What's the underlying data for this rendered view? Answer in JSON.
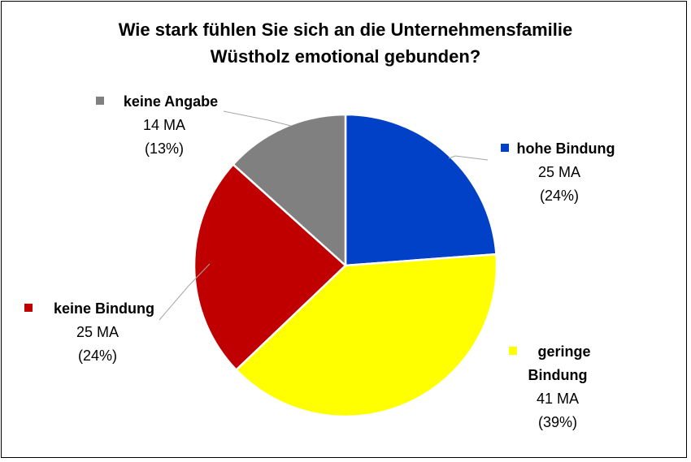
{
  "chart_data": {
    "type": "pie",
    "title_lines": [
      "Wie stark fühlen Sie sich an die Unternehmensfamilie",
      "Wüstholz emotional gebunden?"
    ],
    "slices": [
      {
        "name": "hohe Bindung",
        "name_lines": [
          "hohe Bindung"
        ],
        "value": 25,
        "value_label": "25 MA",
        "percent_label": "(24%)",
        "color": "#0041C8"
      },
      {
        "name": "geringe Bindung",
        "name_lines": [
          "geringe",
          "Bindung"
        ],
        "value": 41,
        "value_label": "41 MA",
        "percent_label": "(39%)",
        "color": "#FFFF00"
      },
      {
        "name": "keine Bindung",
        "name_lines": [
          "keine Bindung"
        ],
        "value": 25,
        "value_label": "25 MA",
        "percent_label": "(24%)",
        "color": "#C00000"
      },
      {
        "name": "keine Angabe",
        "name_lines": [
          "keine Angabe"
        ],
        "value": 14,
        "value_label": "14 MA",
        "percent_label": "(13%)",
        "color": "#808080"
      }
    ],
    "start_angle": "12 o'clock",
    "direction": "clockwise",
    "legend": "none",
    "data_labels": "outside with leader lines"
  }
}
